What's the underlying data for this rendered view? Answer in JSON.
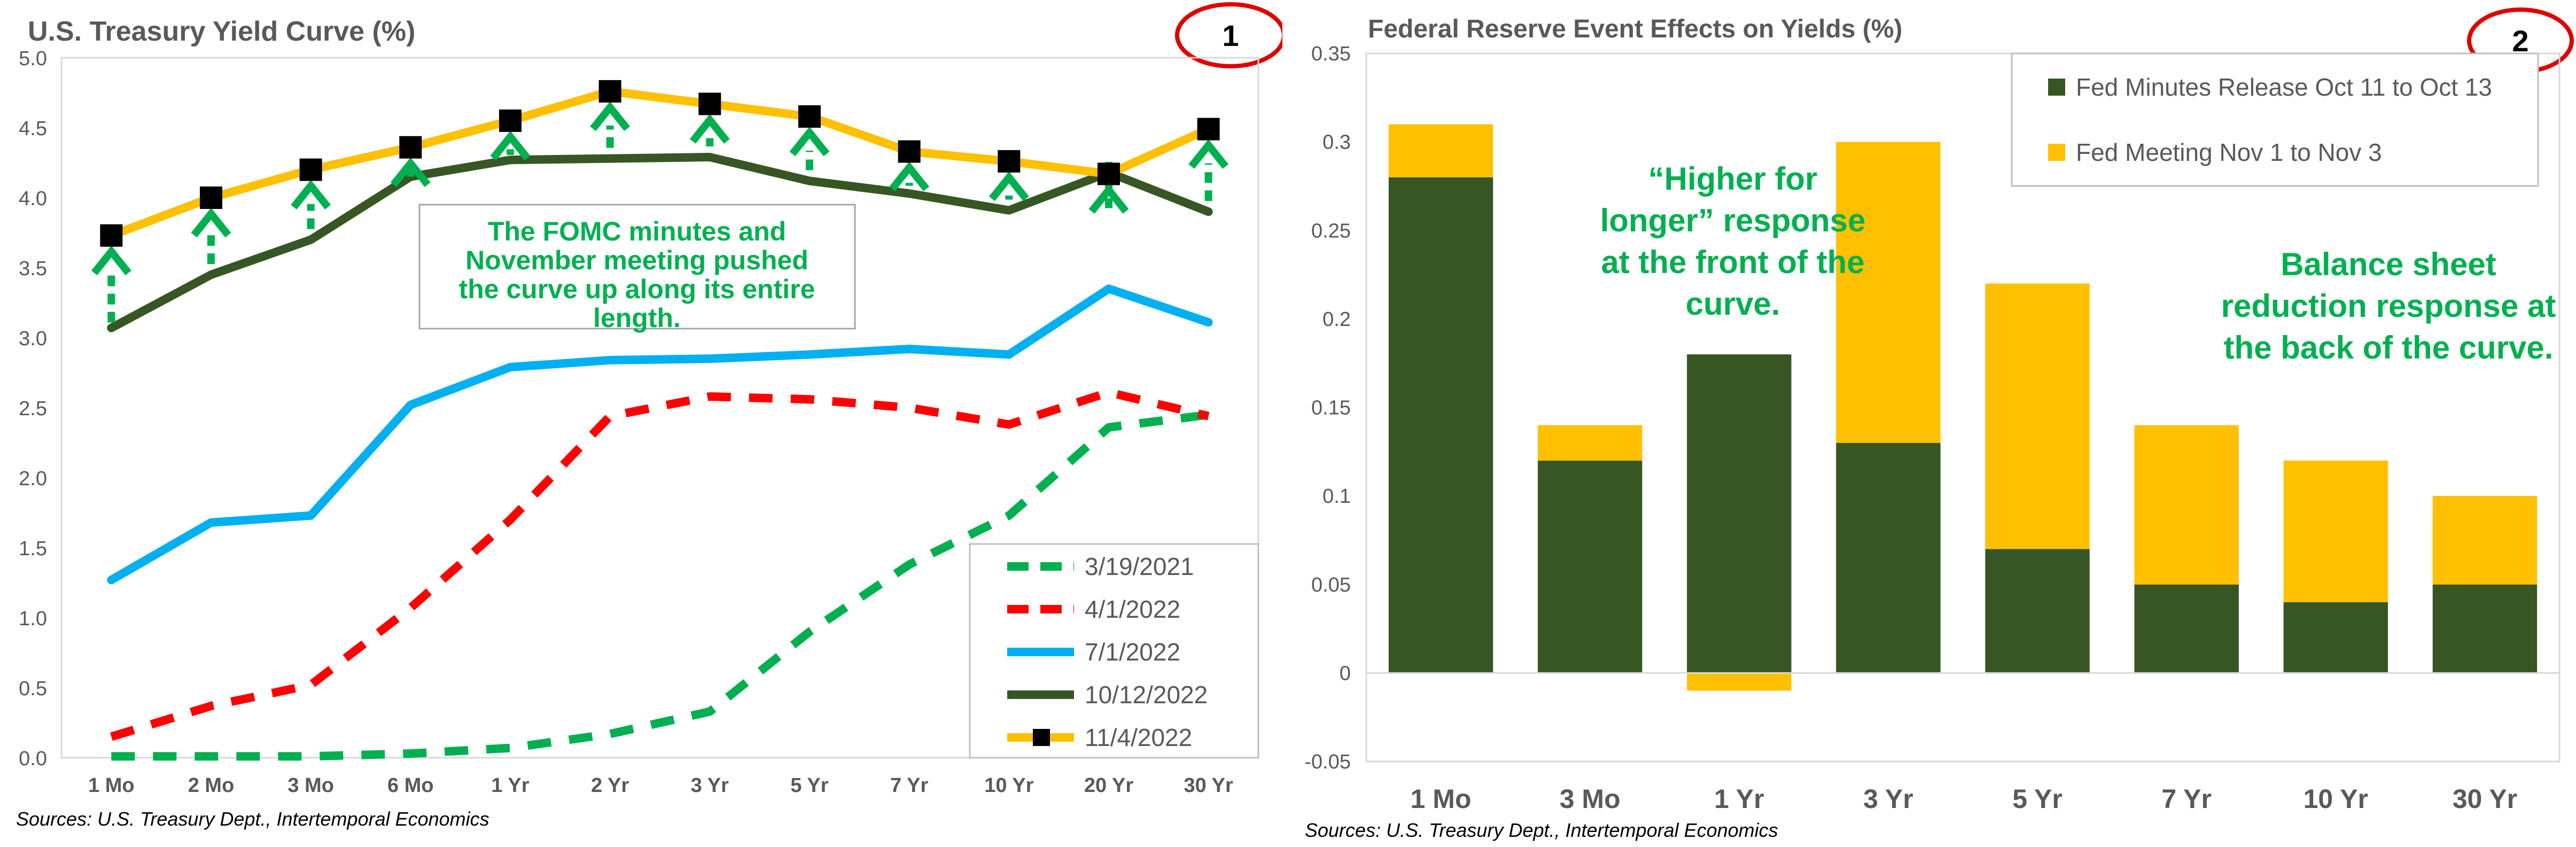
{
  "chart_data": [
    {
      "type": "line",
      "title": "U.S. Treasury Yield Curve (%)",
      "badge": "1",
      "source": "Sources: U.S. Treasury Dept., Intertemporal Economics",
      "annotation": [
        "The FOMC minutes and",
        "November meeting pushed",
        "the curve up along its entire",
        "length."
      ],
      "categories": [
        "1 Mo",
        "2 Mo",
        "3 Mo",
        "6 Mo",
        "1 Yr",
        "2 Yr",
        "3 Yr",
        "5 Yr",
        "7 Yr",
        "10 Yr",
        "20 Yr",
        "30 Yr"
      ],
      "ylim": [
        0,
        5
      ],
      "yticks": [
        "0.0",
        "0.5",
        "1.0",
        "1.5",
        "2.0",
        "2.5",
        "3.0",
        "3.5",
        "4.0",
        "4.5",
        "5.0"
      ],
      "grid": false,
      "legend_position": "bottom-right",
      "series": [
        {
          "name": "3/19/2021",
          "color": "#00B050",
          "style": "dashed",
          "values": [
            0.01,
            0.01,
            0.01,
            0.03,
            0.07,
            0.17,
            0.33,
            0.9,
            1.38,
            1.73,
            2.36,
            2.45
          ]
        },
        {
          "name": "4/1/2022",
          "color": "#FF0000",
          "style": "dashed",
          "values": [
            0.15,
            0.37,
            0.52,
            1.07,
            1.7,
            2.44,
            2.58,
            2.56,
            2.5,
            2.38,
            2.61,
            2.44
          ]
        },
        {
          "name": "7/1/2022",
          "color": "#00B0F0",
          "style": "solid",
          "values": [
            1.27,
            1.68,
            1.73,
            2.52,
            2.79,
            2.84,
            2.85,
            2.88,
            2.92,
            2.88,
            3.35,
            3.11
          ]
        },
        {
          "name": "10/12/2022",
          "color": "#375623",
          "style": "solid",
          "values": [
            3.07,
            3.45,
            3.7,
            4.15,
            4.27,
            4.28,
            4.29,
            4.12,
            4.03,
            3.91,
            4.18,
            3.9
          ]
        },
        {
          "name": "11/4/2022",
          "color": "#FFC000",
          "style": "solid-markers",
          "marker_color": "#000000",
          "values": [
            3.73,
            4.0,
            4.2,
            4.36,
            4.55,
            4.76,
            4.67,
            4.58,
            4.33,
            4.26,
            4.17,
            4.49
          ]
        }
      ]
    },
    {
      "type": "bar",
      "stacked": true,
      "title": "Federal Reserve Event Effects on Yields (%)",
      "badge": "2",
      "source": "Sources: U.S. Treasury Dept., Intertemporal Economics",
      "annotation_left": [
        "“Higher for",
        "longer” response",
        "at the front of the",
        "curve."
      ],
      "annotation_right": [
        "Balance sheet",
        "reduction response at",
        "the back of the curve."
      ],
      "categories": [
        "1 Mo",
        "3 Mo",
        "1 Yr",
        "3 Yr",
        "5 Yr",
        "7 Yr",
        "10 Yr",
        "30 Yr"
      ],
      "ylim": [
        -0.05,
        0.35
      ],
      "yticks": [
        "-0.05",
        "0",
        "0.05",
        "0.1",
        "0.15",
        "0.2",
        "0.25",
        "0.3",
        "0.35"
      ],
      "grid": false,
      "legend_position": "top-right",
      "series": [
        {
          "name": "Fed Minutes Release Oct 11 to Oct 13",
          "color": "#375623",
          "values": [
            0.28,
            0.12,
            0.18,
            0.13,
            0.07,
            0.05,
            0.04,
            0.05
          ]
        },
        {
          "name": "Fed Meeting Nov 1 to Nov 3",
          "color": "#FFC000",
          "values": [
            0.03,
            0.02,
            -0.01,
            0.17,
            0.15,
            0.09,
            0.08,
            0.05
          ]
        }
      ]
    }
  ]
}
